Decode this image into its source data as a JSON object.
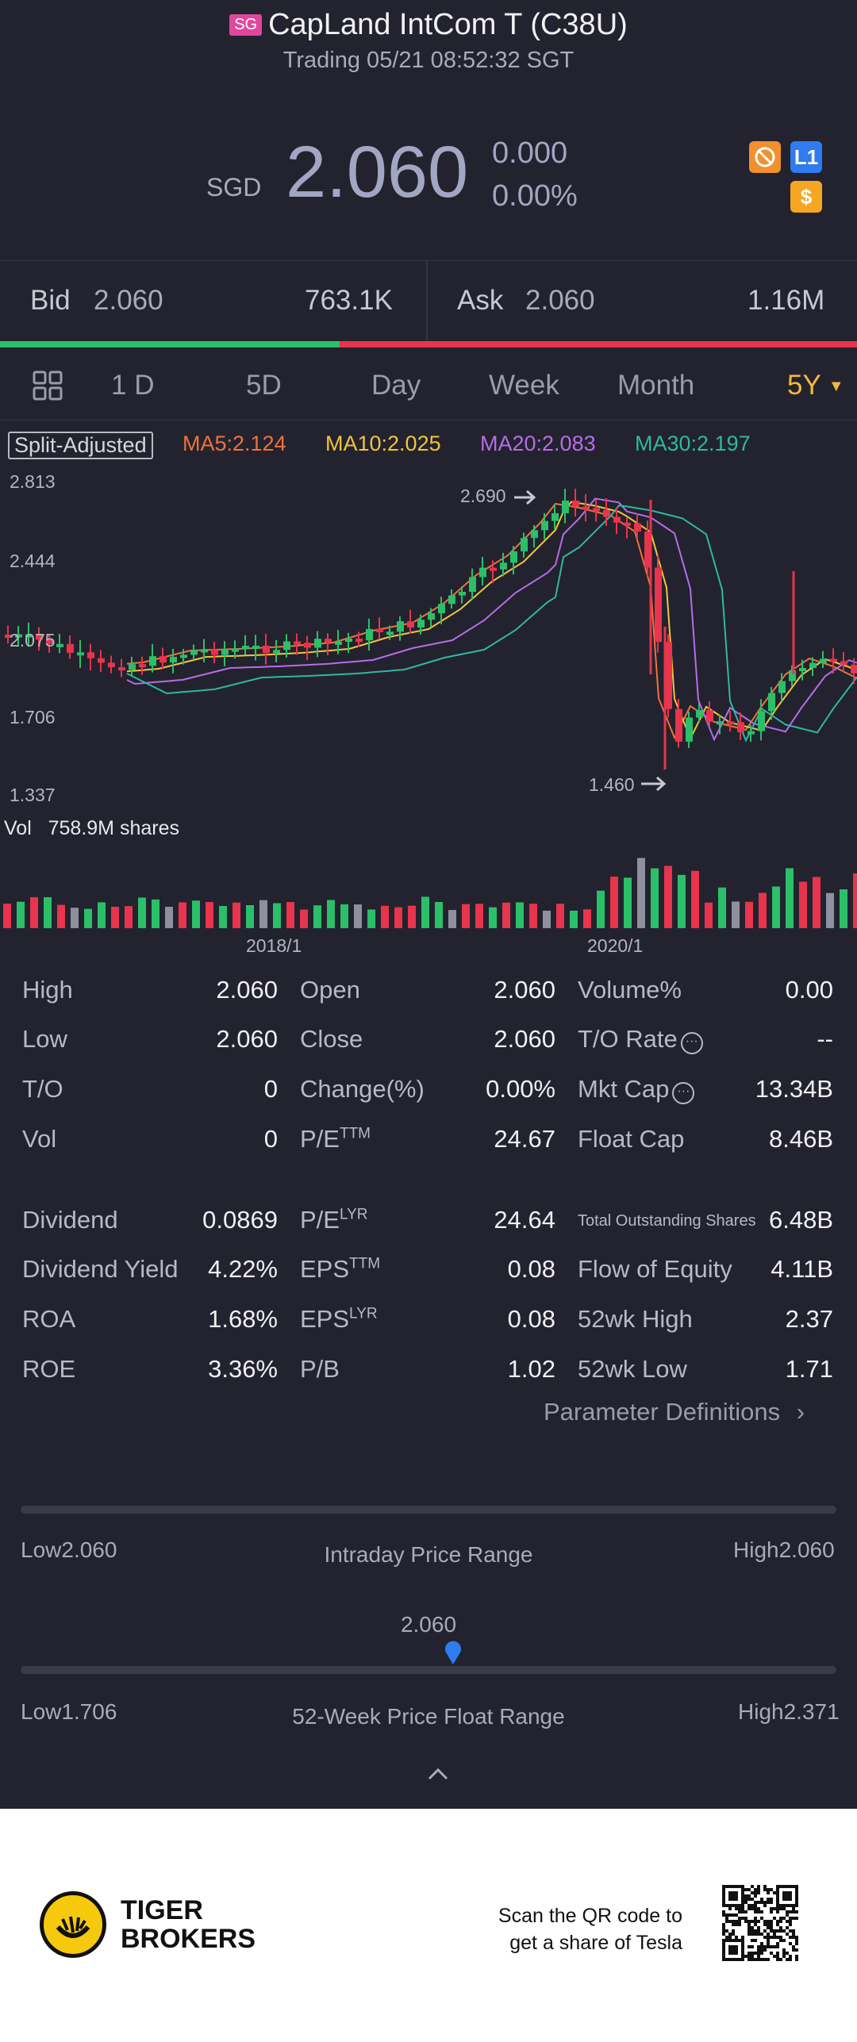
{
  "header": {
    "market_badge": "SG",
    "title": "CapLand IntCom T (C38U)",
    "status": "Trading 05/21 08:52:32 SGT",
    "currency": "SGD",
    "price": "2.060",
    "change": "0.000",
    "change_pct": "0.00%",
    "icons": [
      "cancel-circle-icon",
      "level1-icon",
      "dollar-icon"
    ],
    "icon_l1": "L1",
    "icon_dollar": "$"
  },
  "bidask": {
    "bid_label": "Bid",
    "bid_price": "2.060",
    "bid_size": "763.1K",
    "ask_label": "Ask",
    "ask_price": "2.060",
    "ask_size": "1.16M",
    "bid_fraction": 0.396
  },
  "tabs": {
    "items": [
      "1 D",
      "5D",
      "Day",
      "Week",
      "Month",
      "5Y"
    ],
    "active": "5Y",
    "active_color": "#f5b83d"
  },
  "ma": {
    "split_label": "Split-Adjusted",
    "ma5": "MA5:2.124",
    "ma10": "MA10:2.025",
    "ma20": "MA20:2.083",
    "ma30": "MA30:2.197"
  },
  "colors": {
    "up": "#2bbf6a",
    "down": "#e8344d",
    "neutral": "#8e90a0",
    "ma5": "#f0713c",
    "ma10": "#f2c43c",
    "ma20": "#b86ce8",
    "ma30": "#2fb8a0",
    "bg": "#22232e"
  },
  "chart": {
    "y_ticks": [
      "2.813",
      "2.444",
      "2.075",
      "1.706",
      "1.337"
    ],
    "high_marker": "2.690",
    "low_marker": "1.460",
    "vol_label": "Vol",
    "vol_value": "758.9M shares",
    "x_ticks": [
      "2018/1",
      "2020/1"
    ]
  },
  "stats": {
    "rows1": [
      [
        [
          "High",
          "2.060"
        ],
        [
          "Open",
          "2.060"
        ],
        [
          "Volume%",
          "0.00"
        ]
      ],
      [
        [
          "Low",
          "2.060"
        ],
        [
          "Close",
          "2.060"
        ],
        [
          "T/O Rate",
          "--"
        ]
      ],
      [
        [
          "T/O",
          "0"
        ],
        [
          "Change(%)",
          "0.00%"
        ],
        [
          "Mkt Cap",
          "13.34B"
        ]
      ],
      [
        [
          "Vol",
          "0"
        ],
        [
          "P/E",
          "24.67"
        ],
        [
          "Float Cap",
          "8.46B"
        ]
      ]
    ],
    "rows2": [
      [
        [
          "Dividend",
          "0.0869"
        ],
        [
          "P/E",
          "24.64"
        ],
        [
          "Total Outstanding Shares",
          "6.48B"
        ]
      ],
      [
        [
          "Dividend Yield",
          "4.22%"
        ],
        [
          "EPS",
          "0.08"
        ],
        [
          "Flow of Equity",
          "4.11B"
        ]
      ],
      [
        [
          "ROA",
          "1.68%"
        ],
        [
          "EPS",
          "0.08"
        ],
        [
          "52wk High",
          "2.37"
        ]
      ],
      [
        [
          "ROE",
          "3.36%"
        ],
        [
          "P/B",
          "1.02"
        ],
        [
          "52wk Low",
          "1.71"
        ]
      ]
    ],
    "sup_ttm": "TTM",
    "sup_lyr": "LYR",
    "param_def": "Parameter Definitions"
  },
  "ranges": {
    "intraday_low": "Low2.060",
    "intraday_title": "Intraday Price Range",
    "intraday_high": "High2.060",
    "current": "2.060",
    "week52_low": "Low1.706",
    "week52_title": "52-Week Price Float Range",
    "week52_high": "High2.371",
    "week52_position": 0.53
  },
  "footer": {
    "brand_line1": "TIGER",
    "brand_line2": "BROKERS",
    "qr_line1": "Scan the QR code to",
    "qr_line2": "get a share of Tesla"
  }
}
